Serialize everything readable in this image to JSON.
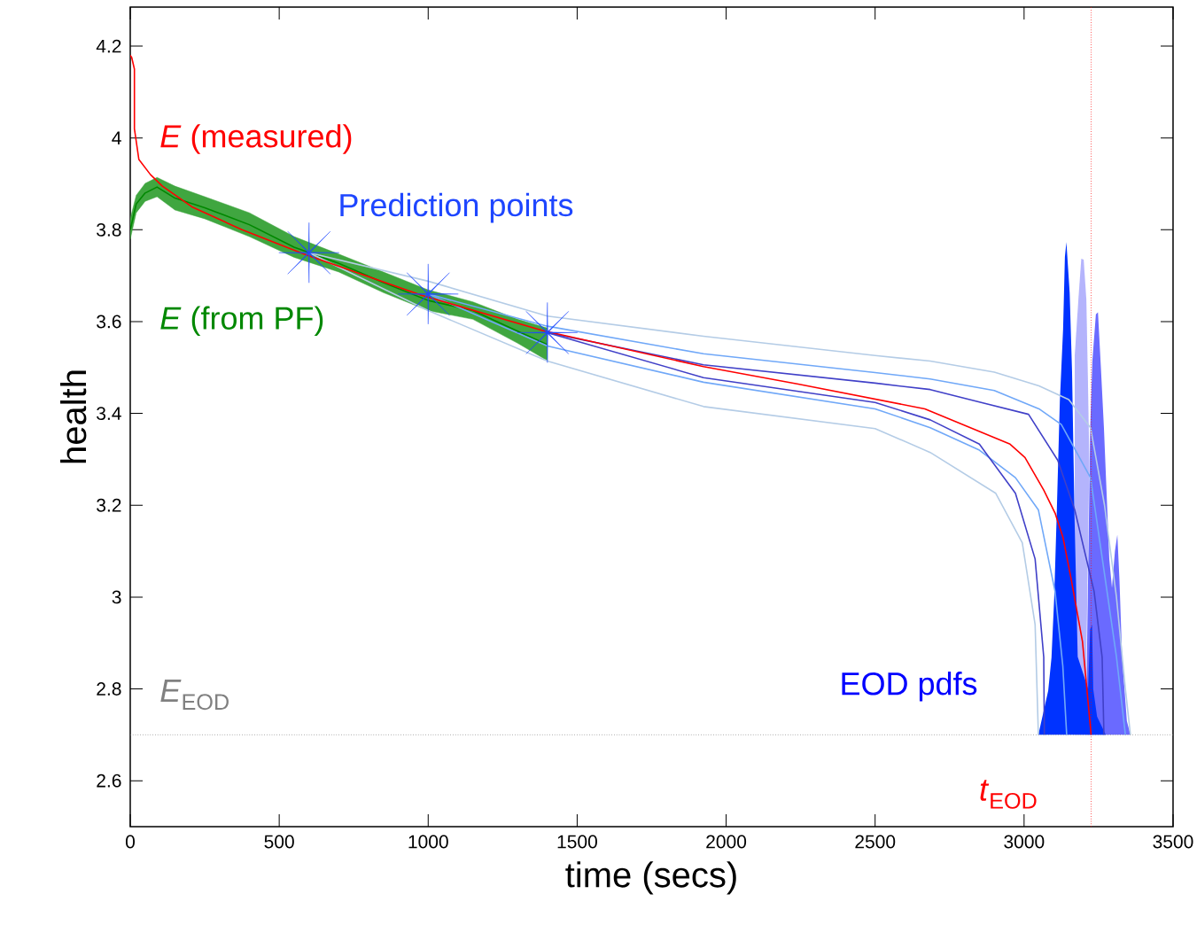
{
  "chart_data": {
    "type": "line",
    "xlabel": "time (secs)",
    "ylabel": "health",
    "xlim": [
      0,
      3500
    ],
    "ylim": [
      2.5,
      4.285
    ],
    "xticks": [
      0,
      500,
      1000,
      1500,
      2000,
      2500,
      3000,
      3500
    ],
    "yticks": [
      2.6,
      2.8,
      3,
      3.2,
      3.4,
      3.6,
      3.8,
      4,
      4.2
    ],
    "annotations": [
      "EOD pdfs"
    ],
    "ref_lines": [
      {
        "axis": "y",
        "value": 2.7,
        "label": "*E*$_{EOD}$",
        "color": "#808080",
        "line_style": "dotted"
      },
      {
        "axis": "x",
        "value": 3225,
        "label": "*t*$_{EOD}$",
        "color": "#ff0000",
        "line_style": "dotted"
      }
    ],
    "series": [
      {
        "name": "*E* (from PF)",
        "color": "#008800",
        "x": [
          0,
          20,
          50,
          90,
          150,
          250,
          400,
          550,
          700,
          850,
          1000,
          1150,
          1300,
          1400
        ],
        "values": [
          3.8,
          3.856,
          3.88,
          3.893,
          3.869,
          3.848,
          3.811,
          3.762,
          3.727,
          3.685,
          3.646,
          3.624,
          3.579,
          3.55
        ],
        "lower": [
          3.779,
          3.837,
          3.862,
          3.872,
          3.843,
          3.824,
          3.785,
          3.74,
          3.708,
          3.663,
          3.624,
          3.605,
          3.553,
          3.515
        ],
        "upper": [
          3.824,
          3.875,
          3.901,
          3.914,
          3.895,
          3.872,
          3.837,
          3.785,
          3.747,
          3.708,
          3.669,
          3.643,
          3.605,
          3.586
        ]
      },
      {
        "type": "area",
        "color": "#b4b4fc",
        "x": [
          3170,
          3170,
          3183,
          3192,
          3200,
          3209,
          3214,
          3219,
          3214,
          3205
        ],
        "values": [
          2.7,
          3.526,
          3.655,
          3.737,
          3.735,
          3.648,
          3.483,
          3.298,
          3.083,
          2.7
        ]
      },
      {
        "type": "area",
        "color": "#6a6aff",
        "x": [
          3208,
          3211,
          3222,
          3229,
          3241,
          3248,
          3258,
          3268,
          3286,
          3295,
          3305,
          3313,
          3320,
          3329,
          3345,
          3357
        ],
        "values": [
          2.7,
          2.87,
          3.369,
          3.512,
          3.616,
          3.62,
          3.497,
          3.369,
          3.083,
          3.02,
          3.1,
          3.136,
          3.04,
          2.87,
          2.73,
          2.7
        ]
      },
      {
        "type": "area",
        "color": "#0033ff",
        "x": [
          3048,
          3081,
          3092,
          3101,
          3109,
          3120,
          3131,
          3137,
          3142,
          3153,
          3161,
          3170,
          3180,
          3215,
          3222,
          3228,
          3232,
          3245,
          3274
        ],
        "values": [
          2.7,
          2.796,
          2.868,
          2.997,
          3.168,
          3.426,
          3.584,
          3.741,
          3.773,
          3.663,
          3.491,
          3.155,
          2.87,
          2.8,
          2.93,
          2.94,
          2.8,
          2.74,
          2.7
        ]
      },
      {
        "color": "#b4cce6",
        "x": [
          600,
          1000,
          1400,
          1924,
          2500,
          2685,
          2900,
          3050,
          3150,
          3223,
          3270,
          3310,
          3340,
          3357
        ],
        "values": [
          3.75,
          3.688,
          3.612,
          3.568,
          3.526,
          3.514,
          3.49,
          3.46,
          3.43,
          3.369,
          3.2,
          3.0,
          2.8,
          2.7
        ]
      },
      {
        "color": "#b4cce6",
        "x": [
          600,
          1000,
          1400,
          1924,
          2500,
          2685,
          2905,
          2994,
          3037,
          3048
        ],
        "values": [
          3.75,
          3.624,
          3.514,
          3.415,
          3.367,
          3.315,
          3.226,
          3.118,
          2.94,
          2.7
        ]
      },
      {
        "color": "#70a8f8",
        "x": [
          1000,
          1400,
          1924,
          2500,
          2685,
          2900,
          3050,
          3125,
          3223,
          3270,
          3310,
          3340
        ],
        "values": [
          3.66,
          3.59,
          3.53,
          3.489,
          3.475,
          3.45,
          3.41,
          3.376,
          3.26,
          3.05,
          2.87,
          2.7
        ]
      },
      {
        "color": "#70a8f8",
        "x": [
          1000,
          1400,
          1924,
          2500,
          2685,
          2850,
          2971,
          3048,
          3104,
          3130,
          3143
        ],
        "values": [
          3.66,
          3.547,
          3.468,
          3.41,
          3.369,
          3.32,
          3.26,
          3.19,
          3.012,
          2.85,
          2.7
        ]
      },
      {
        "color": "#4040c8",
        "x": [
          1400,
          1924,
          2500,
          2685,
          2850,
          3015,
          3113,
          3170,
          3235,
          3262,
          3268
        ],
        "values": [
          3.576,
          3.506,
          3.466,
          3.452,
          3.425,
          3.398,
          3.298,
          3.19,
          3.012,
          2.869,
          2.7
        ]
      },
      {
        "color": "#4040c8",
        "x": [
          1400,
          1924,
          2500,
          2685,
          2850,
          2971,
          3037,
          3066,
          3068
        ],
        "values": [
          3.576,
          3.478,
          3.424,
          3.386,
          3.333,
          3.226,
          3.083,
          2.869,
          2.7
        ]
      },
      {
        "name": "*E* (measured)",
        "color": "#ff0000",
        "x": [
          0,
          5,
          14,
          14,
          29,
          68,
          108,
          207,
          375,
          583,
          980,
          1386,
          1924,
          2242,
          2667,
          2953,
          3003,
          3066,
          3104,
          3131,
          3158,
          3196,
          3225
        ],
        "values": [
          4.18,
          4.175,
          4.15,
          4.02,
          3.953,
          3.92,
          3.895,
          3.85,
          3.8,
          3.747,
          3.657,
          3.58,
          3.502,
          3.464,
          3.41,
          3.333,
          3.304,
          3.233,
          3.183,
          3.129,
          3.039,
          2.903,
          2.7
        ]
      },
      {
        "type": "scatter",
        "name": "Prediction points",
        "color": "#1e46ff",
        "marker": "star",
        "x": [
          600,
          1000,
          1400
        ],
        "values": [
          3.75,
          3.66,
          3.576
        ]
      }
    ]
  }
}
